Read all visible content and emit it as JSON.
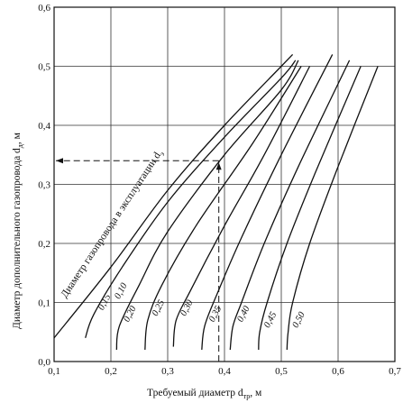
{
  "chart_data": {
    "type": "line",
    "xlabel": "Требуемый диаметр d",
    "xlabel_sub": "тр",
    "xlabel_unit": ", м",
    "ylabel": "Диаметр дополнительного газопровода d",
    "ylabel_sub": "д",
    "ylabel_unit": ", м",
    "family_label": "Диаметр газопровода в эксплуатации d",
    "family_label_sub": "э",
    "xlim": [
      0.1,
      0.7
    ],
    "ylim": [
      0.0,
      0.6
    ],
    "x_ticks": [
      "0,1",
      "0,2",
      "0,3",
      "0,4",
      "0,5",
      "0,6",
      "0,7"
    ],
    "y_ticks": [
      "0,0",
      "0,1",
      "0,2",
      "0,3",
      "0,4",
      "0,5",
      "0,6"
    ],
    "grid": true,
    "series": [
      {
        "name": "0,10",
        "points": [
          [
            0.1,
            0.04
          ],
          [
            0.2,
            0.16
          ],
          [
            0.3,
            0.29
          ],
          [
            0.4,
            0.4
          ],
          [
            0.5,
            0.5
          ],
          [
            0.52,
            0.52
          ]
        ]
      },
      {
        "name": "0,15",
        "points": [
          [
            0.155,
            0.04
          ],
          [
            0.17,
            0.08
          ],
          [
            0.22,
            0.16
          ],
          [
            0.3,
            0.27
          ],
          [
            0.4,
            0.38
          ],
          [
            0.5,
            0.48
          ],
          [
            0.525,
            0.51
          ]
        ]
      },
      {
        "name": "0,20",
        "points": [
          [
            0.21,
            0.02
          ],
          [
            0.215,
            0.06
          ],
          [
            0.25,
            0.13
          ],
          [
            0.3,
            0.22
          ],
          [
            0.4,
            0.35
          ],
          [
            0.5,
            0.46
          ],
          [
            0.53,
            0.51
          ]
        ]
      },
      {
        "name": "0,25",
        "points": [
          [
            0.26,
            0.02
          ],
          [
            0.265,
            0.07
          ],
          [
            0.29,
            0.13
          ],
          [
            0.35,
            0.23
          ],
          [
            0.45,
            0.37
          ],
          [
            0.535,
            0.5
          ]
        ]
      },
      {
        "name": "0,30",
        "points": [
          [
            0.31,
            0.025
          ],
          [
            0.315,
            0.07
          ],
          [
            0.34,
            0.12
          ],
          [
            0.4,
            0.23
          ],
          [
            0.47,
            0.35
          ],
          [
            0.55,
            0.5
          ]
        ]
      },
      {
        "name": "0,35",
        "points": [
          [
            0.36,
            0.02
          ],
          [
            0.365,
            0.06
          ],
          [
            0.385,
            0.11
          ],
          [
            0.43,
            0.21
          ],
          [
            0.5,
            0.35
          ],
          [
            0.59,
            0.52
          ]
        ]
      },
      {
        "name": "0,40",
        "points": [
          [
            0.41,
            0.02
          ],
          [
            0.415,
            0.06
          ],
          [
            0.43,
            0.1
          ],
          [
            0.47,
            0.2
          ],
          [
            0.53,
            0.33
          ],
          [
            0.62,
            0.51
          ]
        ]
      },
      {
        "name": "0,45",
        "points": [
          [
            0.46,
            0.02
          ],
          [
            0.462,
            0.05
          ],
          [
            0.475,
            0.1
          ],
          [
            0.51,
            0.2
          ],
          [
            0.56,
            0.32
          ],
          [
            0.64,
            0.5
          ]
        ]
      },
      {
        "name": "0,50",
        "points": [
          [
            0.51,
            0.02
          ],
          [
            0.512,
            0.05
          ],
          [
            0.52,
            0.1
          ],
          [
            0.55,
            0.2
          ],
          [
            0.6,
            0.33
          ],
          [
            0.67,
            0.5
          ]
        ]
      }
    ],
    "example": {
      "x": 0.39,
      "y": 0.34
    }
  }
}
